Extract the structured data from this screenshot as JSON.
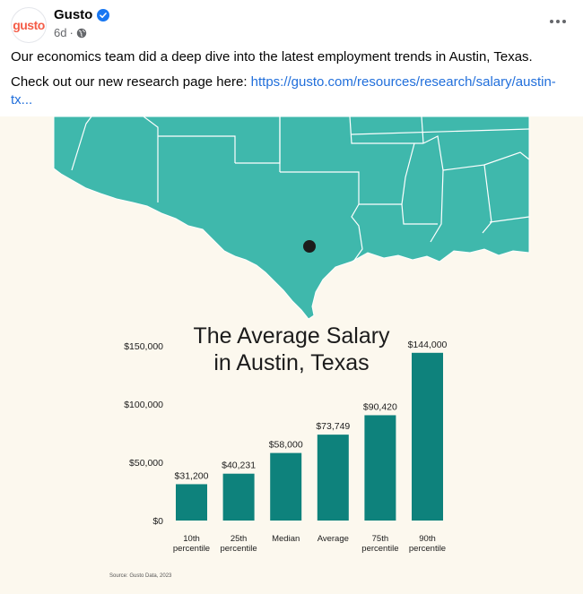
{
  "post": {
    "author": "Gusto",
    "avatar_text": "gusto",
    "time": "6d",
    "dot": "·",
    "text_line1": "Our economics team did a deep dive into the latest employment trends in Austin, Texas.",
    "text_line2_prefix": "Check out our new research page here: ",
    "link_text": "https://gusto.com/resources/research/salary/austin-tx..."
  },
  "colors": {
    "teal": "#0e827c",
    "map_teal": "#3fb8ac",
    "background": "#fcf8ee",
    "link": "#216fdb"
  },
  "chart_data": {
    "type": "bar",
    "title_line1": "The Average Salary",
    "title_line2": "in Austin, Texas",
    "categories": [
      [
        "10th",
        "percentile"
      ],
      [
        "25th",
        "percentile"
      ],
      [
        "Median"
      ],
      [
        "Average"
      ],
      [
        "75th",
        "percentile"
      ],
      [
        "90th",
        "percentile"
      ]
    ],
    "values": [
      31200,
      40231,
      58000,
      73749,
      90420,
      144000
    ],
    "data_labels": [
      "$31,200",
      "$40,231",
      "$58,000",
      "$73,749",
      "$90,420",
      "$144,000"
    ],
    "y_ticks": [
      0,
      50000,
      100000,
      150000
    ],
    "y_tick_labels": [
      "$0",
      "$50,000",
      "$100,000",
      "$150,000"
    ],
    "ylim": [
      0,
      150000
    ],
    "grid": false,
    "source": "Source: Gusto Data, 2023"
  }
}
